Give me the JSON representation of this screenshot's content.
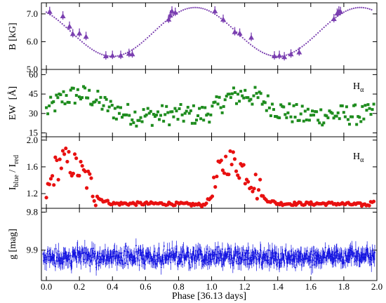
{
  "chart_data": [
    {
      "type": "scatter",
      "ylabel": "B [kG]",
      "ylim": [
        5.0,
        7.4
      ],
      "yticks": [
        "5.0",
        "6.0",
        "7.0"
      ],
      "ytick_values": [
        5.0,
        6.0,
        7.0
      ],
      "colors": {
        "points": "#7a3fb0",
        "model": "#7a3fb0"
      },
      "series": [
        {
          "points": [
            [
              0.02,
              7.08
            ],
            [
              0.1,
              6.92
            ],
            [
              0.14,
              6.55
            ],
            [
              0.16,
              6.28
            ],
            [
              0.2,
              6.3
            ],
            [
              0.24,
              6.18
            ],
            [
              0.36,
              5.48
            ],
            [
              0.4,
              5.5
            ],
            [
              0.45,
              5.5
            ],
            [
              0.5,
              5.57
            ],
            [
              0.52,
              5.55
            ],
            [
              0.74,
              6.8
            ],
            [
              0.75,
              6.95
            ],
            [
              0.76,
              7.1
            ],
            [
              0.78,
              7.05
            ],
            [
              1.02,
              7.1
            ],
            [
              1.07,
              6.8
            ],
            [
              1.14,
              6.35
            ],
            [
              1.17,
              6.3
            ],
            [
              1.24,
              6.15
            ],
            [
              1.38,
              5.48
            ],
            [
              1.41,
              5.5
            ],
            [
              1.44,
              5.45
            ],
            [
              1.48,
              5.55
            ],
            [
              1.53,
              5.62
            ],
            [
              1.74,
              6.82
            ],
            [
              1.76,
              7.02
            ],
            [
              1.77,
              7.1
            ],
            [
              1.78,
              7.08
            ]
          ]
        },
        {
          "model": {
            "mean": 6.35,
            "amplitude": 0.88,
            "max_phase": 0.9
          }
        }
      ]
    },
    {
      "type": "scatter",
      "ylabel_main": "EW",
      "ylabel_unit": "[Å]",
      "ylim": [
        12,
        64
      ],
      "yticks": [
        "15",
        "30",
        "45",
        "60"
      ],
      "ytick_values": [
        15,
        30,
        45,
        60
      ],
      "annotation_main": "H",
      "annotation_sub": "α",
      "colors": {
        "points": "#1e8c1e"
      },
      "envelope": [
        [
          0.0,
          32
        ],
        [
          0.1,
          42
        ],
        [
          0.2,
          45
        ],
        [
          0.28,
          42
        ],
        [
          0.4,
          33
        ],
        [
          0.55,
          28
        ],
        [
          0.75,
          29
        ],
        [
          0.95,
          29
        ],
        [
          1.0,
          32
        ]
      ],
      "scatter_amplitude": 8
    },
    {
      "type": "scatter",
      "ylabel_main": "I",
      "ylabel_sub1": "blue",
      "ylabel_mid": " / I",
      "ylabel_sub2": "red",
      "ylim": [
        0.98,
        2.05
      ],
      "yticks": [
        "1.2",
        "1.6",
        "2.0"
      ],
      "ytick_values": [
        1.2,
        1.6,
        2.0
      ],
      "annotation_main": "H",
      "annotation_sub": "α",
      "colors": {
        "points": "#e81010"
      },
      "envelope": [
        [
          0.0,
          1.15
        ],
        [
          0.05,
          1.55
        ],
        [
          0.1,
          1.7
        ],
        [
          0.18,
          1.6
        ],
        [
          0.25,
          1.4
        ],
        [
          0.32,
          1.12
        ],
        [
          0.4,
          1.05
        ],
        [
          0.6,
          1.05
        ],
        [
          0.75,
          1.05
        ],
        [
          0.95,
          1.03
        ],
        [
          1.0,
          1.15
        ]
      ],
      "scatter_amplitude": 0.22
    },
    {
      "type": "scatter",
      "xlabel": "Phase [36.13 days]",
      "ylabel": "g [mag]",
      "ylim": [
        9.98,
        9.79
      ],
      "yticks": [
        "9.8",
        "9.9"
      ],
      "ytick_values": [
        9.8,
        9.9
      ],
      "inverted": true,
      "colors": {
        "points": "#1010e0"
      },
      "mean": 9.918,
      "scatter_amplitude": 0.022,
      "xlim": [
        -0.03,
        2.0
      ],
      "xticks": [
        "0.0",
        "0.2",
        "0.4",
        "0.6",
        "0.8",
        "1.0",
        "1.2",
        "1.4",
        "1.6",
        "1.8",
        "2.0"
      ],
      "xtick_values": [
        0.0,
        0.2,
        0.4,
        0.6,
        0.8,
        1.0,
        1.2,
        1.4,
        1.6,
        1.8,
        2.0
      ]
    }
  ]
}
